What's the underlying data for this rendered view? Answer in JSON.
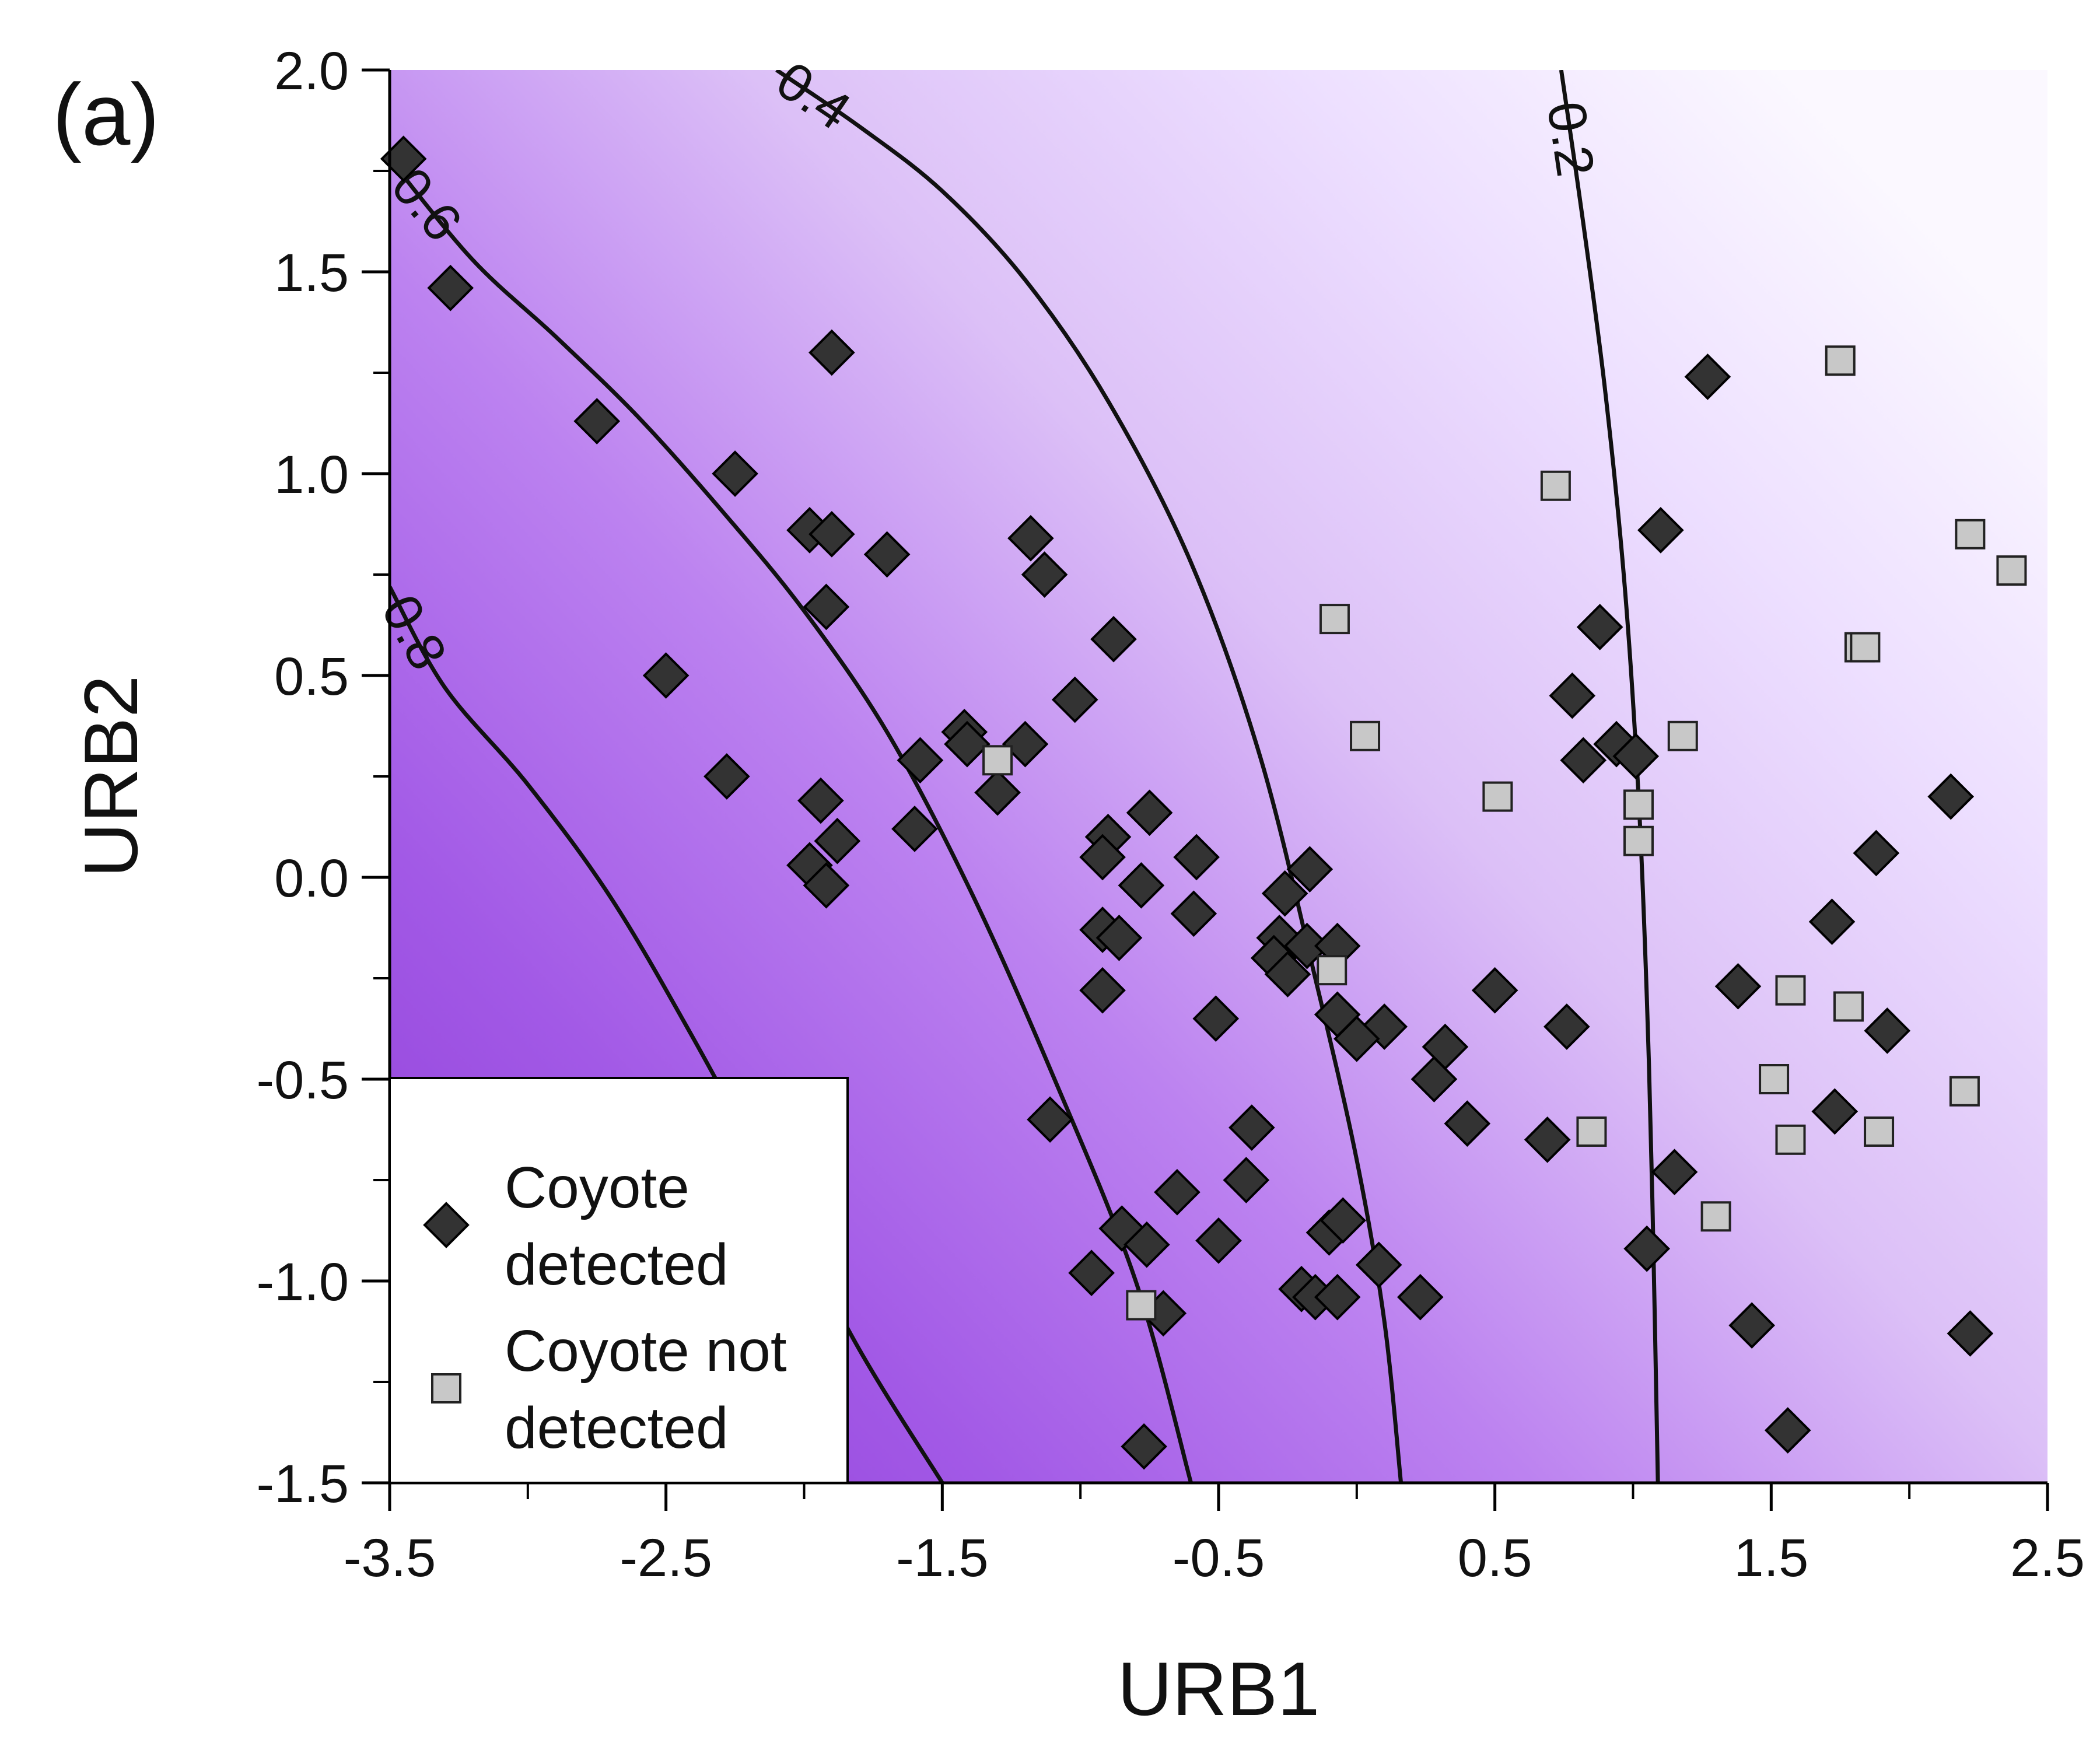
{
  "panel_label": "(a)",
  "chart_data": {
    "type": "scatter",
    "xlabel": "URB1",
    "ylabel": "URB2",
    "xlim": [
      -3.5,
      2.5
    ],
    "ylim": [
      -1.5,
      2.0
    ],
    "xticks": [
      -3.5,
      -2.5,
      -1.5,
      -0.5,
      0.5,
      1.5,
      2.5
    ],
    "xtick_labels": [
      "-3.5",
      "-2.5",
      "-1.5",
      "-0.5",
      "0.5",
      "1.5",
      "2.5"
    ],
    "yticks": [
      -1.5,
      -1.0,
      -0.5,
      0.0,
      0.5,
      1.0,
      1.5,
      2.0
    ],
    "ytick_labels": [
      "-1.5",
      "-1.0",
      "-0.5",
      "0.0",
      "0.5",
      "1.0",
      "1.5",
      "2.0"
    ],
    "grid": false,
    "background": {
      "type": "heatmap",
      "description_colors": {
        "high": "#8e3bd6",
        "low": "#f8f2ff"
      }
    },
    "contours": [
      {
        "level": "0.8",
        "points": [
          [
            -3.5,
            0.72
          ],
          [
            -3.3,
            0.47
          ],
          [
            -3.0,
            0.23
          ],
          [
            -2.7,
            -0.05
          ],
          [
            -2.4,
            -0.4
          ],
          [
            -2.1,
            -0.78
          ],
          [
            -1.8,
            -1.17
          ],
          [
            -1.5,
            -1.5
          ]
        ]
      },
      {
        "level": "0.6",
        "points": [
          [
            -3.5,
            1.78
          ],
          [
            -3.2,
            1.53
          ],
          [
            -2.9,
            1.34
          ],
          [
            -2.6,
            1.14
          ],
          [
            -2.3,
            0.91
          ],
          [
            -2.0,
            0.66
          ],
          [
            -1.7,
            0.36
          ],
          [
            -1.4,
            -0.03
          ],
          [
            -1.1,
            -0.49
          ],
          [
            -0.8,
            -1.0
          ],
          [
            -0.6,
            -1.5
          ]
        ]
      },
      {
        "level": "0.4",
        "points": [
          [
            -2.1,
            2.0
          ],
          [
            -1.8,
            1.86
          ],
          [
            -1.5,
            1.7
          ],
          [
            -1.2,
            1.48
          ],
          [
            -0.9,
            1.18
          ],
          [
            -0.6,
            0.78
          ],
          [
            -0.35,
            0.3
          ],
          [
            -0.15,
            -0.25
          ],
          [
            0.0,
            -0.7
          ],
          [
            0.1,
            -1.1
          ],
          [
            0.16,
            -1.5
          ]
        ]
      },
      {
        "level": "0.2",
        "points": [
          [
            0.74,
            2.0
          ],
          [
            0.82,
            1.62
          ],
          [
            0.9,
            1.2
          ],
          [
            0.97,
            0.72
          ],
          [
            1.02,
            0.2
          ],
          [
            1.05,
            -0.3
          ],
          [
            1.07,
            -0.8
          ],
          [
            1.09,
            -1.5
          ]
        ]
      }
    ],
    "legend": {
      "placement": "bottom-left",
      "entries": [
        "Coyote\ndetected",
        "Coyote not\ndetected"
      ]
    },
    "series": [
      {
        "name": "Coyote\ndetected",
        "marker": "diamond",
        "color": "#333333",
        "points": [
          [
            -3.45,
            1.78
          ],
          [
            -3.28,
            1.46
          ],
          [
            -2.75,
            1.13
          ],
          [
            -2.25,
            1.0
          ],
          [
            -1.9,
            1.3
          ],
          [
            -1.98,
            0.86
          ],
          [
            -1.9,
            0.85
          ],
          [
            -1.7,
            0.8
          ],
          [
            -1.18,
            0.84
          ],
          [
            -1.13,
            0.75
          ],
          [
            -1.92,
            0.67
          ],
          [
            -0.88,
            0.59
          ],
          [
            -2.5,
            0.5
          ],
          [
            -1.02,
            0.44
          ],
          [
            -1.42,
            0.36
          ],
          [
            -1.41,
            0.33
          ],
          [
            -1.2,
            0.33
          ],
          [
            -1.58,
            0.29
          ],
          [
            -2.28,
            0.25
          ],
          [
            -1.3,
            0.21
          ],
          [
            -1.94,
            0.19
          ],
          [
            -1.6,
            0.12
          ],
          [
            -1.88,
            0.09
          ],
          [
            -0.75,
            0.16
          ],
          [
            -0.9,
            0.1
          ],
          [
            -0.92,
            0.05
          ],
          [
            -1.98,
            0.03
          ],
          [
            -0.58,
            0.05
          ],
          [
            -0.17,
            0.02
          ],
          [
            -1.92,
            -0.02
          ],
          [
            -0.78,
            -0.02
          ],
          [
            -0.26,
            -0.04
          ],
          [
            -0.59,
            -0.09
          ],
          [
            -0.92,
            -0.13
          ],
          [
            -0.86,
            -0.15
          ],
          [
            -0.28,
            -0.15
          ],
          [
            -0.3,
            -0.2
          ],
          [
            -0.18,
            -0.17
          ],
          [
            -0.07,
            -0.17
          ],
          [
            -0.25,
            -0.24
          ],
          [
            -0.92,
            -0.28
          ],
          [
            -0.51,
            -0.35
          ],
          [
            -0.07,
            -0.34
          ],
          [
            0.1,
            -0.37
          ],
          [
            0.0,
            -0.4
          ],
          [
            0.5,
            -0.28
          ],
          [
            0.32,
            -0.42
          ],
          [
            0.28,
            -0.5
          ],
          [
            0.4,
            -0.61
          ],
          [
            -1.11,
            -0.6
          ],
          [
            -0.38,
            -0.62
          ],
          [
            0.69,
            -0.65
          ],
          [
            -0.4,
            -0.75
          ],
          [
            -0.65,
            -0.78
          ],
          [
            -0.85,
            -0.87
          ],
          [
            -0.76,
            -0.91
          ],
          [
            -0.5,
            -0.9
          ],
          [
            -0.1,
            -0.88
          ],
          [
            -0.05,
            -0.85
          ],
          [
            0.08,
            -0.96
          ],
          [
            -0.96,
            -0.98
          ],
          [
            -0.2,
            -1.02
          ],
          [
            -0.15,
            -1.04
          ],
          [
            -0.07,
            -1.04
          ],
          [
            0.23,
            -1.04
          ],
          [
            -0.7,
            -1.08
          ],
          [
            -0.77,
            -1.41
          ],
          [
            1.27,
            1.24
          ],
          [
            1.1,
            0.86
          ],
          [
            0.88,
            0.62
          ],
          [
            0.78,
            0.45
          ],
          [
            0.94,
            0.33
          ],
          [
            0.82,
            0.29
          ],
          [
            1.01,
            0.3
          ],
          [
            2.15,
            0.2
          ],
          [
            1.88,
            0.06
          ],
          [
            1.72,
            -0.11
          ],
          [
            1.38,
            -0.27
          ],
          [
            0.76,
            -0.37
          ],
          [
            1.92,
            -0.38
          ],
          [
            1.73,
            -0.58
          ],
          [
            1.15,
            -0.73
          ],
          [
            1.05,
            -0.92
          ],
          [
            1.43,
            -1.11
          ],
          [
            2.22,
            -1.13
          ],
          [
            1.56,
            -1.37
          ]
        ]
      },
      {
        "name": "Coyote not\ndetected",
        "marker": "square",
        "color": "#c8c8c8",
        "points": [
          [
            1.75,
            1.28
          ],
          [
            0.72,
            0.97
          ],
          [
            2.22,
            0.85
          ],
          [
            2.37,
            0.76
          ],
          [
            -0.08,
            0.64
          ],
          [
            1.82,
            0.57
          ],
          [
            1.84,
            0.57
          ],
          [
            0.03,
            0.35
          ],
          [
            1.18,
            0.35
          ],
          [
            -1.3,
            0.29
          ],
          [
            0.51,
            0.2
          ],
          [
            1.02,
            0.18
          ],
          [
            1.02,
            0.09
          ],
          [
            -0.09,
            -0.23
          ],
          [
            1.57,
            -0.28
          ],
          [
            1.78,
            -0.32
          ],
          [
            1.51,
            -0.5
          ],
          [
            2.2,
            -0.53
          ],
          [
            0.85,
            -0.63
          ],
          [
            1.89,
            -0.63
          ],
          [
            1.57,
            -0.65
          ],
          [
            1.3,
            -0.84
          ],
          [
            -0.78,
            -1.06
          ]
        ]
      }
    ]
  }
}
